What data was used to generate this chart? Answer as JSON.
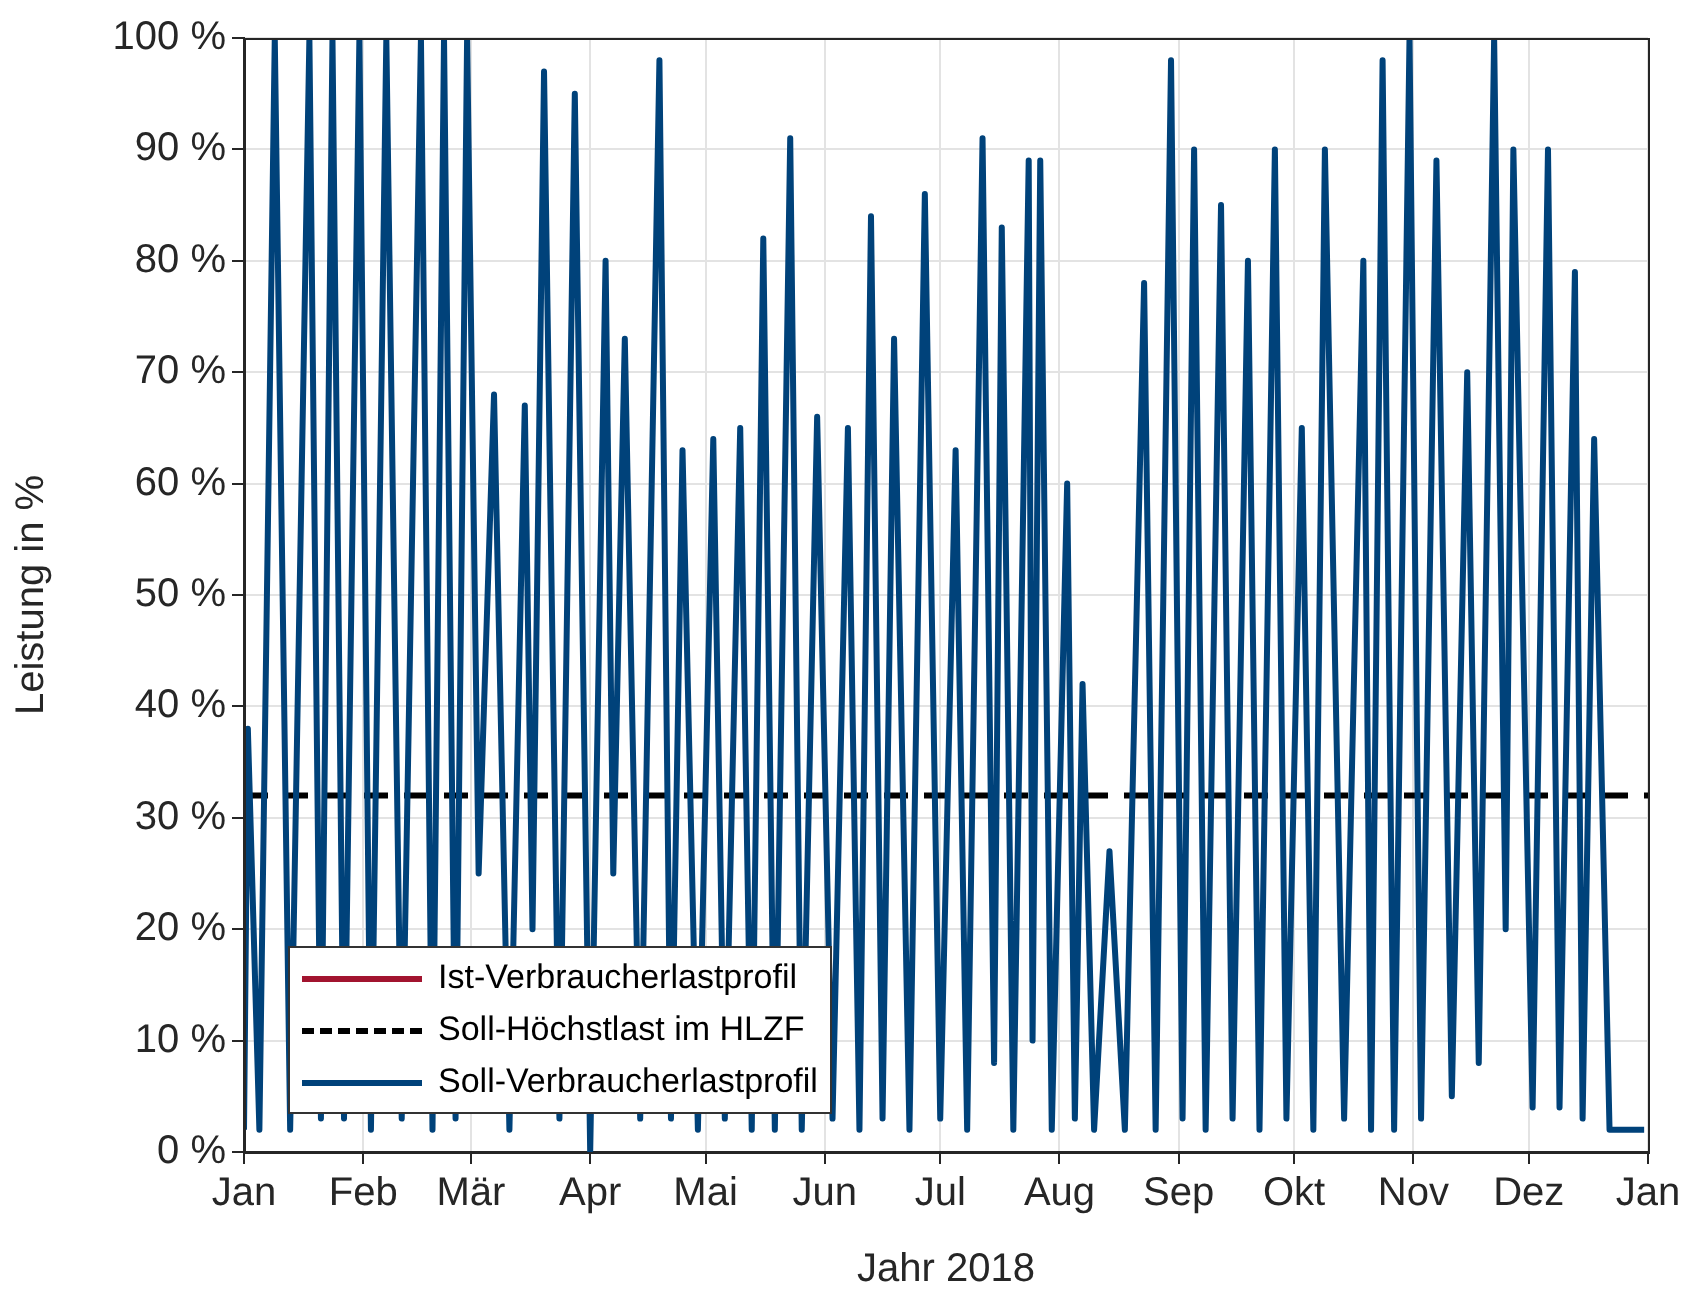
{
  "chart_data": {
    "type": "line",
    "xlabel": "Jahr 2018",
    "ylabel": "Leistung in %",
    "grid": true,
    "legend": "bottom left",
    "line_style": "solid",
    "marker": "none",
    "xlim": [
      "2018-01-01",
      "2019-01-01"
    ],
    "xticks": [
      {
        "value": "2018-01-01",
        "label": "Jan"
      },
      {
        "value": "2018-02-01",
        "label": "Feb"
      },
      {
        "value": "2018-03-01",
        "label": "Mär"
      },
      {
        "value": "2018-04-01",
        "label": "Apr"
      },
      {
        "value": "2018-05-01",
        "label": "Mai"
      },
      {
        "value": "2018-06-01",
        "label": "Jun"
      },
      {
        "value": "2018-07-01",
        "label": "Jul"
      },
      {
        "value": "2018-08-01",
        "label": "Aug"
      },
      {
        "value": "2018-09-01",
        "label": "Sep"
      },
      {
        "value": "2018-10-01",
        "label": "Okt"
      },
      {
        "value": "2018-11-01",
        "label": "Nov"
      },
      {
        "value": "2018-12-01",
        "label": "Dez"
      },
      {
        "value": "2019-01-01",
        "label": "Jan"
      }
    ],
    "ylim": [
      0,
      100
    ],
    "yticks": [
      {
        "value": 0,
        "label": "0 %"
      },
      {
        "value": 10,
        "label": "10 %"
      },
      {
        "value": 20,
        "label": "20 %"
      },
      {
        "value": 30,
        "label": "30 %"
      },
      {
        "value": 40,
        "label": "40 %"
      },
      {
        "value": 50,
        "label": "50 %"
      },
      {
        "value": 60,
        "label": "60 %"
      },
      {
        "value": 70,
        "label": "70 %"
      },
      {
        "value": 80,
        "label": "80 %"
      },
      {
        "value": 90,
        "label": "90 %"
      },
      {
        "value": 100,
        "label": "100 %"
      }
    ],
    "series": [
      {
        "name": "Ist-Verbraucherlastprofil",
        "color": "#a2142f"
      },
      {
        "name": "Soll-Höchstlast im HLZF",
        "color": "#000000",
        "line_style": "dashed",
        "x": [
          "2018-01-01",
          "2019-01-01"
        ],
        "values": [
          32,
          32
        ]
      },
      {
        "name": "Soll-Verbraucherlastprofil",
        "color": "#00427a",
        "x": [
          "2018-01-01",
          "2018-01-02",
          "2018-01-05",
          "2018-01-09",
          "2018-01-13",
          "2018-01-18",
          "2018-01-21",
          "2018-01-24",
          "2018-01-27",
          "2018-01-31",
          "2018-02-03",
          "2018-02-07",
          "2018-02-11",
          "2018-02-16",
          "2018-02-19",
          "2018-02-22",
          "2018-02-25",
          "2018-02-28",
          "2018-03-03",
          "2018-03-07",
          "2018-03-11",
          "2018-03-15",
          "2018-03-17",
          "2018-03-20",
          "2018-03-24",
          "2018-03-28",
          "2018-04-01",
          "2018-04-05",
          "2018-04-07",
          "2018-04-10",
          "2018-04-14",
          "2018-04-19",
          "2018-04-22",
          "2018-04-25",
          "2018-04-29",
          "2018-05-03",
          "2018-05-06",
          "2018-05-10",
          "2018-05-13",
          "2018-05-16",
          "2018-05-19",
          "2018-05-23",
          "2018-05-26",
          "2018-05-30",
          "2018-06-03",
          "2018-06-07",
          "2018-06-10",
          "2018-06-13",
          "2018-06-16",
          "2018-06-19",
          "2018-06-23",
          "2018-06-27",
          "2018-07-01",
          "2018-07-05",
          "2018-07-08",
          "2018-07-12",
          "2018-07-15",
          "2018-07-17",
          "2018-07-20",
          "2018-07-24",
          "2018-07-25",
          "2018-07-27",
          "2018-07-30",
          "2018-08-03",
          "2018-08-05",
          "2018-08-07",
          "2018-08-10",
          "2018-08-14",
          "2018-08-18",
          "2018-08-23",
          "2018-08-26",
          "2018-08-30",
          "2018-09-02",
          "2018-09-05",
          "2018-09-08",
          "2018-09-12",
          "2018-09-15",
          "2018-09-19",
          "2018-09-22",
          "2018-09-26",
          "2018-09-29",
          "2018-10-03",
          "2018-10-06",
          "2018-10-09",
          "2018-10-14",
          "2018-10-19",
          "2018-10-21",
          "2018-10-24",
          "2018-10-27",
          "2018-10-31",
          "2018-11-03",
          "2018-11-07",
          "2018-11-11",
          "2018-11-15",
          "2018-11-18",
          "2018-11-22",
          "2018-11-25",
          "2018-11-27",
          "2018-12-02",
          "2018-12-06",
          "2018-12-09",
          "2018-12-13",
          "2018-12-15",
          "2018-12-18",
          "2018-12-22",
          "2018-12-31"
        ],
        "values": [
          2,
          38,
          2,
          100,
          2,
          100,
          3,
          100,
          3,
          100,
          2,
          100,
          3,
          100,
          2,
          100,
          3,
          100,
          25,
          68,
          2,
          67,
          20,
          97,
          3,
          95,
          0,
          80,
          25,
          73,
          3,
          98,
          3,
          63,
          2,
          64,
          3,
          65,
          2,
          82,
          2,
          91,
          2,
          66,
          3,
          65,
          2,
          84,
          3,
          73,
          2,
          86,
          3,
          63,
          2,
          91,
          8,
          83,
          2,
          89,
          10,
          89,
          2,
          60,
          3,
          42,
          2,
          27,
          2,
          78,
          2,
          98,
          3,
          90,
          2,
          85,
          3,
          80,
          2,
          90,
          3,
          65,
          2,
          90,
          3,
          80,
          2,
          98,
          2,
          100,
          3,
          89,
          5,
          70,
          8,
          100,
          20,
          90,
          4,
          90,
          4,
          79,
          3,
          64,
          2,
          2
        ]
      }
    ]
  }
}
